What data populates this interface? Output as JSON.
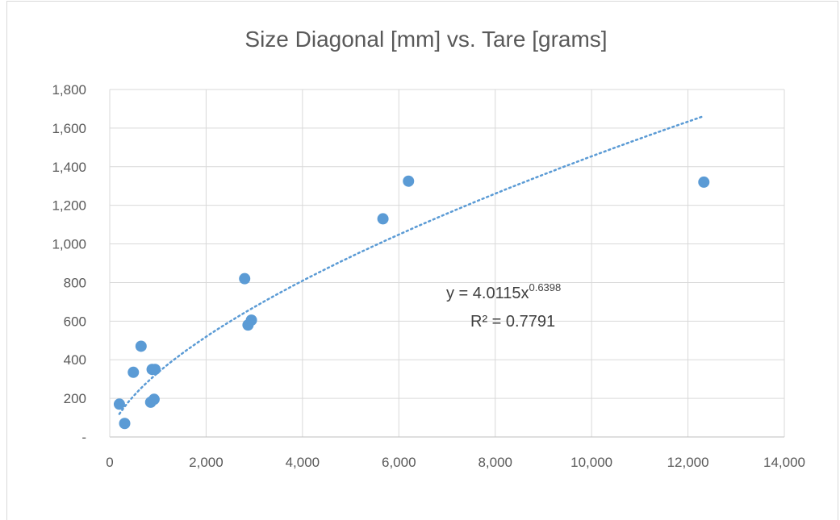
{
  "chart_data": {
    "type": "scatter",
    "title": "Size Diagonal [mm] vs. Tare [grams]",
    "xlabel": "",
    "ylabel": "",
    "xlim": [
      0,
      14000
    ],
    "ylim": [
      0,
      1800
    ],
    "x_ticks": [
      0,
      2000,
      4000,
      6000,
      8000,
      10000,
      12000,
      14000
    ],
    "x_tick_labels": [
      "0",
      "2,000",
      "4,000",
      "6,000",
      "8,000",
      "10,000",
      "12,000",
      "14,000"
    ],
    "y_ticks": [
      0,
      200,
      400,
      600,
      800,
      1000,
      1200,
      1400,
      1600,
      1800
    ],
    "y_tick_labels": [
      "-",
      "200",
      "400",
      "600",
      "800",
      "1,000",
      "1,200",
      "1,400",
      "1,600",
      "1,800"
    ],
    "grid": true,
    "legend": "none",
    "series": [
      {
        "color": "#5b9bd5",
        "points": [
          {
            "x": 200,
            "y": 170
          },
          {
            "x": 310,
            "y": 70
          },
          {
            "x": 490,
            "y": 335
          },
          {
            "x": 650,
            "y": 470
          },
          {
            "x": 850,
            "y": 180
          },
          {
            "x": 880,
            "y": 350
          },
          {
            "x": 920,
            "y": 195
          },
          {
            "x": 940,
            "y": 350
          },
          {
            "x": 2800,
            "y": 820
          },
          {
            "x": 2870,
            "y": 580
          },
          {
            "x": 2940,
            "y": 605
          },
          {
            "x": 5670,
            "y": 1130
          },
          {
            "x": 6200,
            "y": 1325
          },
          {
            "x": 12330,
            "y": 1320
          }
        ]
      }
    ],
    "trendline": {
      "type": "power",
      "coefficient": 4.0115,
      "exponent": 0.6398,
      "x_range": [
        200,
        12330
      ],
      "color": "#5b9bd5",
      "equation_prefix": "y = 4.0115x",
      "equation_exponent": "0.6398",
      "r_squared_label": "R² = 0.7791"
    }
  }
}
